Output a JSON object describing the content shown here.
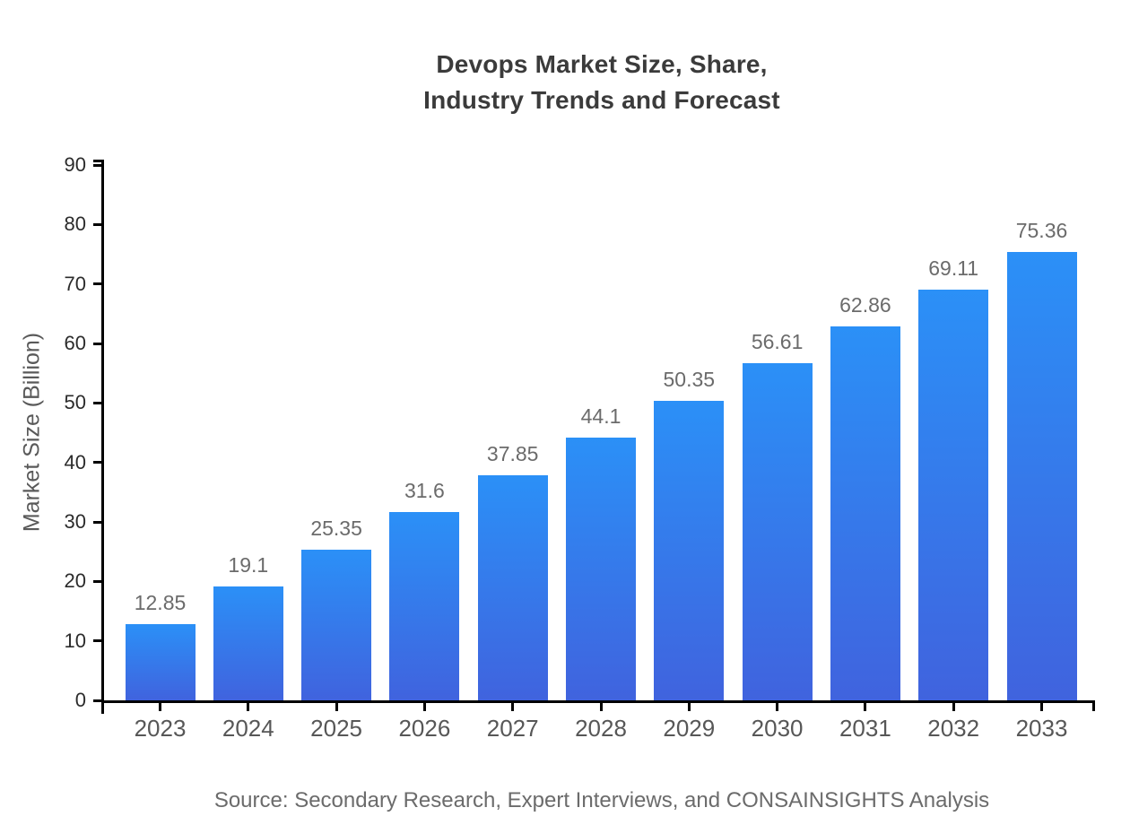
{
  "title": {
    "line1": "Devops Market Size, Share,",
    "line2": "Industry Trends and Forecast"
  },
  "source_note": "Source: Secondary Research, Expert Interviews, and CONSAINSIGHTS Analysis",
  "colors": {
    "bar_gradient_top": "#2B90F7",
    "bar_gradient_bottom": "#4063DE",
    "axis": "#000000",
    "title_text": "#3b3b3b",
    "tick_label_y": "#2b2b2b",
    "tick_label_x": "#575757",
    "value_label": "#6b6b6b",
    "source_text": "#6b6b6b"
  },
  "chart_data": {
    "type": "bar",
    "title": "Devops Market Size, Share, Industry Trends and Forecast",
    "categories": [
      "2023",
      "2024",
      "2025",
      "2026",
      "2027",
      "2028",
      "2029",
      "2030",
      "2031",
      "2032",
      "2033"
    ],
    "values": [
      12.85,
      19.1,
      25.35,
      31.6,
      37.85,
      44.1,
      50.35,
      56.61,
      62.86,
      69.11,
      75.36
    ],
    "value_labels": [
      "12.85",
      "19.1",
      "25.35",
      "31.6",
      "37.85",
      "44.1",
      "50.35",
      "56.61",
      "62.86",
      "69.11",
      "75.36"
    ],
    "xlabel": "",
    "ylabel": "Market Size (Billion)",
    "ylim": [
      0,
      90
    ],
    "yticks": [
      0,
      10,
      20,
      30,
      40,
      50,
      60,
      70,
      80,
      90
    ],
    "grid": false,
    "legend": null,
    "bar_color_top": "#2B90F7",
    "bar_color_bottom": "#4063DE"
  }
}
